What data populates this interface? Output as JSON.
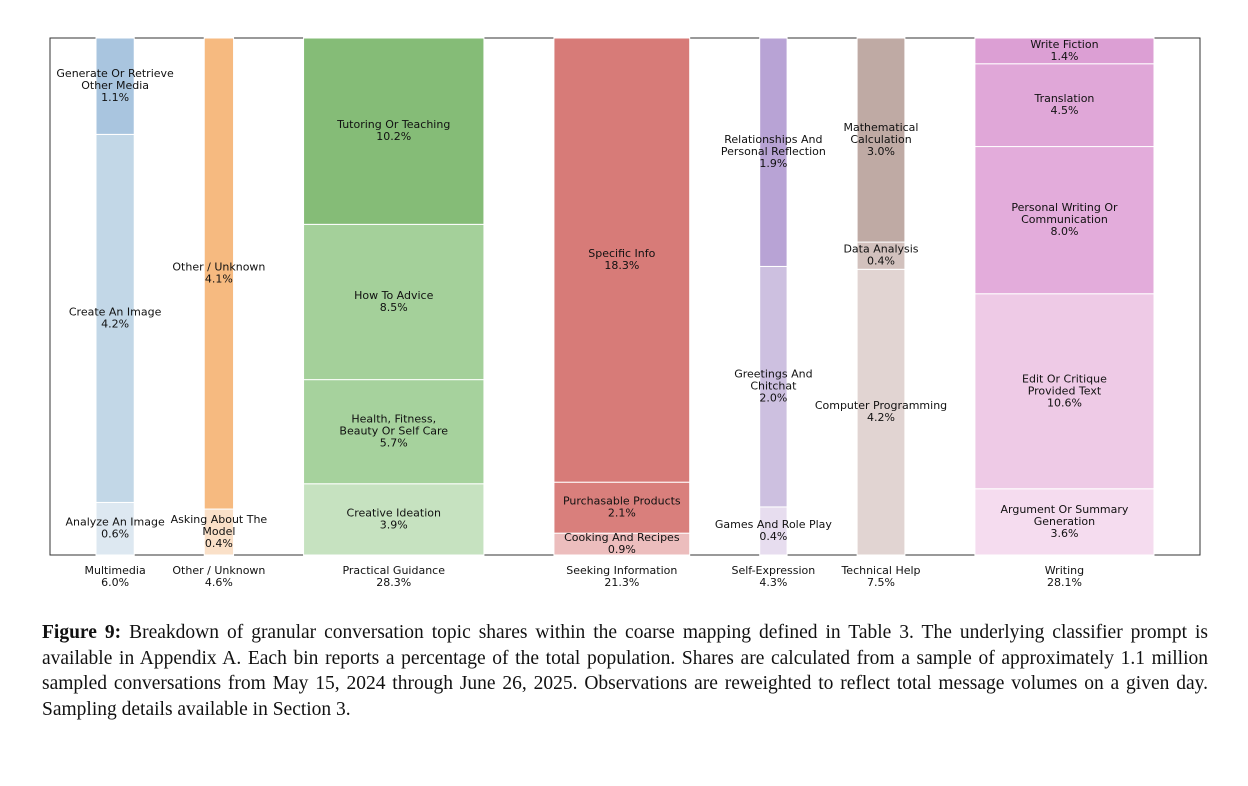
{
  "chart_data": {
    "type": "marimekko",
    "groups": [
      {
        "name": "Multimedia",
        "value": 6.0,
        "value_label": "6.0%",
        "segments": {
          "names": [
            "Analyze An Image",
            "Create An Image",
            "Generate Or Retrieve\nOther Media"
          ],
          "values": [
            0.6,
            4.2,
            1.1
          ],
          "value_labels": [
            "0.6%",
            "4.2%",
            "1.1%"
          ],
          "colors": [
            "#dde8f1",
            "#c2d7e7",
            "#a9c5df"
          ]
        }
      },
      {
        "name": "Other / Unknown",
        "value": 4.6,
        "value_label": "4.6%",
        "segments": {
          "names": [
            "Asking About The\nModel",
            "Other / Unknown"
          ],
          "values": [
            0.4,
            4.1
          ],
          "value_labels": [
            "0.4%",
            "4.1%"
          ],
          "colors": [
            "#fae0c8",
            "#f6ba80"
          ]
        }
      },
      {
        "name": "Practical Guidance",
        "value": 28.3,
        "value_label": "28.3%",
        "segments": {
          "names": [
            "Creative Ideation",
            "Health, Fitness,\nBeauty Or Self Care",
            "How To Advice",
            "Tutoring Or Teaching"
          ],
          "values": [
            3.9,
            5.7,
            8.5,
            10.2
          ],
          "value_labels": [
            "3.9%",
            "5.7%",
            "8.5%",
            "10.2%"
          ],
          "colors": [
            "#c6e2c0",
            "#a6d29d",
            "#a4d09a",
            "#85bc77"
          ]
        }
      },
      {
        "name": "Seeking Information",
        "value": 21.3,
        "value_label": "21.3%",
        "segments": {
          "names": [
            "Cooking And Recipes",
            "Purchasable Products",
            "Specific Info"
          ],
          "values": [
            0.9,
            2.1,
            18.3
          ],
          "value_labels": [
            "0.9%",
            "2.1%",
            "18.3%"
          ],
          "colors": [
            "#ecbdbd",
            "#d97f7c",
            "#d77b78"
          ]
        }
      },
      {
        "name": "Self-Expression",
        "value": 4.3,
        "value_label": "4.3%",
        "segments": {
          "names": [
            "Games And Role Play",
            "Greetings And\nChitchat",
            "Relationships And\nPersonal Reflection"
          ],
          "values": [
            0.4,
            2.0,
            1.9
          ],
          "value_labels": [
            "0.4%",
            "2.0%",
            "1.9%"
          ],
          "colors": [
            "#e7ddef",
            "#cdc0e0",
            "#b8a3d5"
          ]
        }
      },
      {
        "name": "Technical Help",
        "value": 7.5,
        "value_label": "7.5%",
        "segments": {
          "names": [
            "Computer Programming",
            "Data Analysis",
            "Mathematical\nCalculation"
          ],
          "values": [
            4.2,
            0.4,
            3.0
          ],
          "value_labels": [
            "4.2%",
            "0.4%",
            "3.0%"
          ],
          "colors": [
            "#e1d4d2",
            "#d2c1bd",
            "#bfaaa4"
          ]
        }
      },
      {
        "name": "Writing",
        "value": 28.1,
        "value_label": "28.1%",
        "segments": {
          "names": [
            "Argument Or Summary\nGeneration",
            "Edit Or Critique\nProvided Text",
            "Personal Writing Or\nCommunication",
            "Translation",
            "Write Fiction"
          ],
          "values": [
            3.6,
            10.6,
            8.0,
            4.5,
            1.4
          ],
          "value_labels": [
            "3.6%",
            "10.6%",
            "8.0%",
            "4.5%",
            "1.4%"
          ],
          "colors": [
            "#f5dcef",
            "#eecae6",
            "#e3acdb",
            "#e0a7d8",
            "#dc9fd4"
          ]
        }
      }
    ]
  },
  "caption": {
    "label": "Figure 9:",
    "text": "Breakdown of granular conversation topic shares within the coarse mapping defined in Table 3. The underlying classifier prompt is available in Appendix A. Each bin reports a percentage of the total population. Shares are calculated from a sample of approximately 1.1 million sampled conversations from May 15, 2024 through June 26, 2025. Observations are reweighted to reflect total message volumes on a given day. Sampling details available in Section 3."
  }
}
